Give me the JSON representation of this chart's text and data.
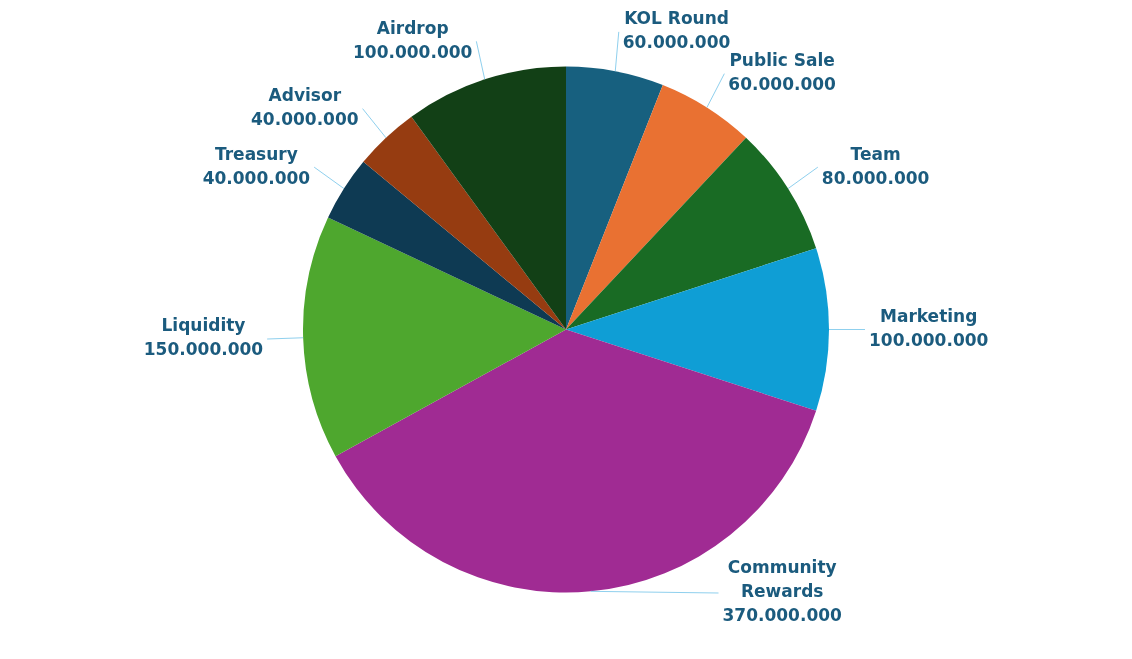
{
  "chart_data": {
    "type": "pie",
    "categories": [
      "KOL Round",
      "Public Sale",
      "Team",
      "Marketing",
      "Community Rewards",
      "Liquidity",
      "Treasury",
      "Advisor",
      "Airdrop"
    ],
    "values": [
      60000000,
      60000000,
      80000000,
      100000000,
      370000000,
      150000000,
      40000000,
      40000000,
      100000000
    ],
    "colors": [
      "#17607f",
      "#e97132",
      "#196b24",
      "#0f9ed5",
      "#a02b93",
      "#4ea72e",
      "#0e3a53",
      "#963c11",
      "#124016"
    ],
    "value_labels": [
      "60.000.000",
      "60.000.000",
      "80.000.000",
      "100.000.000",
      "370.000.000",
      "150.000.000",
      "40.000.000",
      "40.000.000",
      "100.000.000"
    ],
    "legend": false
  }
}
